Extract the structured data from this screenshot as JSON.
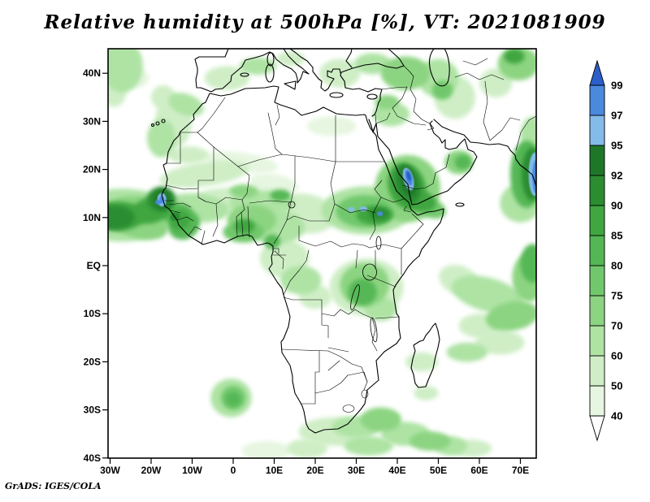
{
  "title": "Relative humidity at 500hPa [%], VT: 2021081909",
  "credit": "GrADS: IGES/COLA",
  "chart_data": {
    "type": "heatmap",
    "title": "Relative humidity at 500hPa [%], VT: 2021081909",
    "variable": "Relative humidity",
    "pressure_level": "500hPa",
    "units": "%",
    "valid_time": "2021081909",
    "x_axis": {
      "tick_values": [
        -30,
        -20,
        -10,
        0,
        10,
        20,
        30,
        40,
        50,
        60,
        70
      ],
      "ticks": [
        "30W",
        "20W",
        "10W",
        "0",
        "10E",
        "20E",
        "30E",
        "40E",
        "50E",
        "60E",
        "70E"
      ],
      "range_deg": [
        -30.5,
        74
      ]
    },
    "y_axis": {
      "tick_values": [
        40,
        30,
        20,
        10,
        0,
        -10,
        -20,
        -30,
        -40
      ],
      "ticks": [
        "40N",
        "30N",
        "20N",
        "10N",
        "EQ",
        "10S",
        "20S",
        "30S",
        "40S"
      ],
      "range_deg": [
        -40,
        45
      ]
    },
    "levels": [
      40,
      50,
      60,
      70,
      75,
      80,
      85,
      90,
      92,
      95,
      97,
      99
    ],
    "palette": {
      "40": "#e6f6e0",
      "50": "#cfeec6",
      "60": "#aee3a4",
      "70": "#8cd481",
      "75": "#71c86c",
      "80": "#54b754",
      "85": "#40a640",
      "90": "#2b8d30",
      "92": "#1e7728",
      "95": "#85bbea",
      "97": "#4a89de",
      "99": "#2c5fc9"
    },
    "colorbar_labels_top_to_bottom": [
      "99",
      "97",
      "95",
      "92",
      "90",
      "85",
      "80",
      "75",
      "70",
      "60",
      "50",
      "40"
    ],
    "regions_format": "[lon_deg, lat_deg, radius_lon_deg, radius_lat_deg, rotation_deg, min_rh_percent]",
    "regions": [
      [
        -27,
        10.5,
        13,
        5.5,
        0,
        60
      ],
      [
        -24,
        10.5,
        9,
        4,
        0,
        70
      ],
      [
        -28,
        10.3,
        6.5,
        3,
        0,
        85
      ],
      [
        -29,
        10,
        5,
        2.5,
        0,
        90
      ],
      [
        -20,
        11.5,
        5,
        2.7,
        -15,
        85
      ],
      [
        -17.5,
        13.8,
        3.5,
        2.6,
        0,
        90
      ],
      [
        -17.3,
        13.8,
        2,
        2,
        0,
        92
      ],
      [
        -17.4,
        13.7,
        1.1,
        1.4,
        0,
        95
      ],
      [
        -17.4,
        13.7,
        0.6,
        0.8,
        0,
        97
      ],
      [
        -22,
        8,
        6,
        2.5,
        10,
        70
      ],
      [
        -14,
        11,
        4,
        2,
        0,
        80
      ],
      [
        -14.2,
        10.2,
        1.2,
        0.9,
        -20,
        90
      ],
      [
        -12,
        8.5,
        4,
        3,
        -30,
        80
      ],
      [
        -13,
        9.5,
        2.5,
        2,
        -30,
        85
      ],
      [
        -18.3,
        13.2,
        0.7,
        0.5,
        0,
        97
      ],
      [
        -9,
        12,
        8,
        3,
        5,
        60
      ],
      [
        -1,
        13.5,
        9,
        2.7,
        0,
        50
      ],
      [
        7,
        13,
        8,
        2.7,
        0,
        60
      ],
      [
        16,
        12.5,
        7,
        2.5,
        0,
        50
      ],
      [
        -7,
        19,
        11,
        2.5,
        -8,
        50
      ],
      [
        2,
        21.5,
        9,
        2,
        8,
        40
      ],
      [
        -11,
        23,
        5,
        1.8,
        0,
        50
      ],
      [
        2.6,
        15.5,
        3.5,
        1.4,
        0,
        70
      ],
      [
        11.5,
        14.6,
        2.5,
        1.2,
        0,
        80
      ],
      [
        10,
        17,
        6,
        2,
        10,
        40
      ],
      [
        24,
        29,
        6,
        2,
        0,
        40
      ],
      [
        -14.5,
        30,
        4.5,
        5.5,
        0,
        50
      ],
      [
        -11.5,
        33.5,
        4.5,
        2.2,
        20,
        60
      ],
      [
        -17.5,
        26.5,
        3.5,
        4,
        0,
        60
      ],
      [
        -17,
        35,
        3,
        2.5,
        0,
        50
      ],
      [
        -1.5,
        39,
        5.5,
        2.5,
        0,
        50
      ],
      [
        6,
        41.5,
        4.5,
        1.8,
        0,
        60
      ],
      [
        14,
        43,
        3.5,
        1.5,
        0,
        50
      ],
      [
        26,
        40,
        5,
        3,
        0,
        50
      ],
      [
        34,
        42,
        4.5,
        2.2,
        0,
        60
      ],
      [
        42,
        40,
        6,
        3.5,
        0,
        70
      ],
      [
        50,
        39,
        5,
        4,
        0,
        60
      ],
      [
        51,
        36.5,
        2.5,
        2,
        0,
        75
      ],
      [
        54,
        35,
        5,
        4.5,
        0,
        50
      ],
      [
        38.5,
        31.5,
        4.5,
        2.5,
        0,
        60
      ],
      [
        37.5,
        34,
        3,
        1.5,
        0,
        70
      ],
      [
        -27,
        41.5,
        5,
        5.5,
        0,
        60
      ],
      [
        -29,
        36.5,
        3,
        3.5,
        0,
        50
      ],
      [
        -23.5,
        39,
        3,
        2,
        0,
        40
      ],
      [
        69.5,
        42,
        5,
        3.5,
        0,
        70
      ],
      [
        68.5,
        43.5,
        2.5,
        1.5,
        0,
        85
      ],
      [
        64,
        38,
        4,
        3,
        0,
        50
      ],
      [
        4.5,
        9.5,
        6,
        3.2,
        0,
        70
      ],
      [
        10.5,
        8,
        7,
        3.5,
        0,
        60
      ],
      [
        18.5,
        9.5,
        6,
        2.8,
        0,
        50
      ],
      [
        2.5,
        7,
        5,
        2.2,
        0,
        75
      ],
      [
        2.8,
        8.2,
        2.5,
        1.5,
        0,
        85
      ],
      [
        9.5,
        5,
        2,
        1.5,
        0,
        80
      ],
      [
        32.5,
        11.5,
        11,
        5,
        0,
        60
      ],
      [
        32,
        11.3,
        7,
        3.4,
        0,
        75
      ],
      [
        34.5,
        10.5,
        4.5,
        2,
        0,
        85
      ],
      [
        35.5,
        10.8,
        2.5,
        1.3,
        0,
        90
      ],
      [
        28.8,
        11.7,
        0.8,
        0.5,
        0,
        95
      ],
      [
        31.7,
        11.8,
        1,
        0.5,
        0,
        95
      ],
      [
        35.8,
        10.8,
        0.7,
        0.5,
        0,
        97
      ],
      [
        42.5,
        16,
        8,
        7,
        0,
        70
      ],
      [
        42.3,
        16.5,
        4.5,
        5,
        -20,
        85
      ],
      [
        42.5,
        17,
        3,
        4.2,
        -18,
        90
      ],
      [
        42.6,
        17.5,
        1.8,
        3.2,
        -15,
        92
      ],
      [
        42.7,
        18,
        1.2,
        2.4,
        -15,
        95
      ],
      [
        42.8,
        18.3,
        0.8,
        1.7,
        -15,
        97
      ],
      [
        42.8,
        18.6,
        0.5,
        1,
        -15,
        99
      ],
      [
        45.5,
        13.5,
        4,
        2.2,
        15,
        85
      ],
      [
        48,
        12,
        4,
        2,
        20,
        75
      ],
      [
        55,
        21.5,
        3.5,
        2.5,
        0,
        70
      ],
      [
        56,
        21.5,
        2,
        1.5,
        0,
        80
      ],
      [
        71.5,
        19,
        4,
        7,
        0,
        80
      ],
      [
        72.8,
        19,
        2.5,
        5.5,
        0,
        90
      ],
      [
        73.5,
        19,
        1.5,
        4.5,
        0,
        95
      ],
      [
        73.8,
        18.5,
        0.9,
        3.5,
        0,
        97
      ],
      [
        70,
        13,
        5,
        4,
        0,
        60
      ],
      [
        73,
        27,
        3,
        4,
        0,
        60
      ],
      [
        12.5,
        1.5,
        6,
        4,
        0,
        50
      ],
      [
        16.5,
        -3,
        5,
        3,
        0,
        60
      ],
      [
        20,
        -6.5,
        4,
        2.5,
        0,
        50
      ],
      [
        32.5,
        -4.5,
        9,
        6,
        0,
        50
      ],
      [
        32,
        -4,
        6,
        4.5,
        0,
        70
      ],
      [
        31.5,
        -5.5,
        3.5,
        2.8,
        0,
        80
      ],
      [
        34.5,
        -2,
        3,
        2,
        0,
        60
      ],
      [
        36,
        -9,
        4,
        2.5,
        0,
        60
      ],
      [
        62,
        -6,
        9,
        3.5,
        15,
        60
      ],
      [
        68,
        -10.5,
        6.5,
        3,
        -10,
        70
      ],
      [
        60,
        -12.5,
        5,
        2.5,
        0,
        50
      ],
      [
        72,
        -2.5,
        4,
        5,
        0,
        70
      ],
      [
        73,
        0.5,
        3,
        4,
        0,
        80
      ],
      [
        55,
        -3,
        5,
        3,
        20,
        50
      ],
      [
        65,
        -16,
        6,
        2.5,
        0,
        50
      ],
      [
        46,
        -20,
        4,
        2,
        0,
        50
      ],
      [
        57,
        -18,
        5,
        2,
        0,
        60
      ],
      [
        47,
        -26.5,
        3,
        1.5,
        0,
        50
      ],
      [
        -0.5,
        -27.5,
        5,
        4,
        0,
        60
      ],
      [
        0,
        -27.5,
        3,
        2.5,
        0,
        75
      ],
      [
        0,
        -27.8,
        1.8,
        1.5,
        0,
        80
      ],
      [
        25,
        -34.5,
        9,
        3,
        0,
        50
      ],
      [
        30,
        -33.5,
        6,
        2.2,
        0,
        60
      ],
      [
        36,
        -32,
        5,
        2.5,
        0,
        70
      ],
      [
        42,
        -35,
        6,
        2.5,
        0,
        60
      ],
      [
        48,
        -36.5,
        5,
        2,
        0,
        70
      ],
      [
        53,
        -37.5,
        4,
        2,
        0,
        60
      ],
      [
        33,
        -37.5,
        6,
        2,
        0,
        60
      ],
      [
        18,
        -38,
        5,
        2,
        0,
        50
      ],
      [
        8,
        -38.5,
        6,
        2,
        0,
        40
      ],
      [
        58,
        -38,
        5,
        1.8,
        0,
        50
      ]
    ]
  }
}
